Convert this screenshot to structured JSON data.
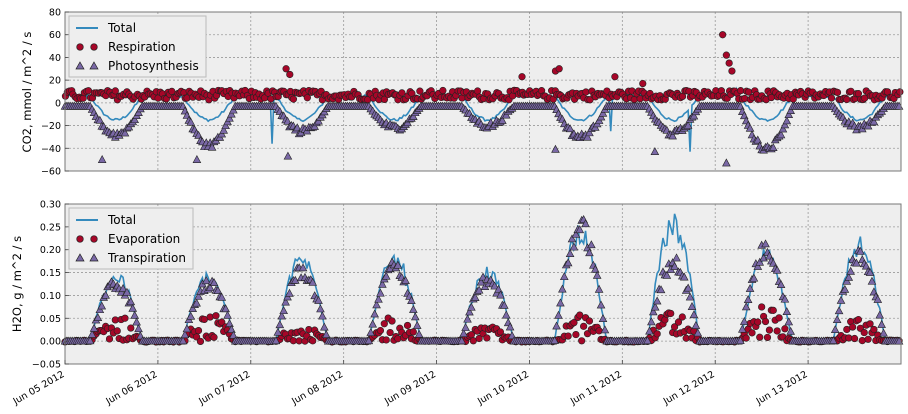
{
  "chart_data": [
    {
      "type": "line",
      "ylabel": "CO2, mmol / m^2 / s",
      "ylim": [
        -60,
        80
      ],
      "yticks": [
        -60,
        -40,
        -20,
        0,
        20,
        40,
        60,
        80
      ],
      "ytick_labels": [
        "−60",
        "−40",
        "−20",
        "0",
        "20",
        "40",
        "60",
        "80"
      ],
      "grid": true,
      "legend_position": "top-left",
      "series": [
        {
          "name": "Total",
          "style": "line",
          "color": "#348abd",
          "pattern": {
            "night": 6,
            "day": -15
          },
          "spikes": [
            {
              "x": 2.22,
              "y": -36
            },
            {
              "x": 5.88,
              "y": -25
            },
            {
              "x": 6.72,
              "y": -43
            },
            {
              "x": 7.22,
              "y": 12
            }
          ]
        },
        {
          "name": "Respiration",
          "style": "markers-circle",
          "color": "#a60628",
          "pattern": {
            "base": 6,
            "spread": 6
          },
          "outliers": [
            {
              "x": 2.38,
              "y": 30
            },
            {
              "x": 2.42,
              "y": 25
            },
            {
              "x": 5.28,
              "y": 28
            },
            {
              "x": 5.32,
              "y": 30
            },
            {
              "x": 4.92,
              "y": 23
            },
            {
              "x": 5.92,
              "y": 23
            },
            {
              "x": 6.22,
              "y": 17
            },
            {
              "x": 7.08,
              "y": 60
            },
            {
              "x": 7.12,
              "y": 42
            },
            {
              "x": 7.15,
              "y": 35
            },
            {
              "x": 7.18,
              "y": 28
            }
          ]
        },
        {
          "name": "Photosynthesis",
          "style": "markers-triangle",
          "color": "#7a68a6",
          "pattern": {
            "night": -3,
            "day": [
              -28,
              -37,
              -25,
              -22,
              -20,
              -30,
              -27,
              -40,
              -22
            ]
          },
          "outliers": [
            {
              "x": 0.4,
              "y": -50
            },
            {
              "x": 1.42,
              "y": -50
            },
            {
              "x": 2.4,
              "y": -47
            },
            {
              "x": 5.28,
              "y": -41
            },
            {
              "x": 6.35,
              "y": -43
            },
            {
              "x": 7.12,
              "y": -53
            }
          ]
        }
      ]
    },
    {
      "type": "line",
      "ylabel": "H2O, g / m^2 / s",
      "ylim": [
        -0.05,
        0.3
      ],
      "yticks": [
        -0.05,
        0.0,
        0.05,
        0.1,
        0.15,
        0.2,
        0.25,
        0.3
      ],
      "ytick_labels": [
        "−0.05",
        "0.00",
        "0.05",
        "0.10",
        "0.15",
        "0.20",
        "0.25",
        "0.30"
      ],
      "grid": true,
      "legend_position": "top-left",
      "x_range": [
        "2012-06-05",
        "2012-06-14"
      ],
      "xtick_labels": [
        "Jun 05 2012",
        "Jun 06 2012",
        "Jun 07 2012",
        "Jun 08 2012",
        "Jun 09 2012",
        "Jun 10 2012",
        "Jun 11 2012",
        "Jun 12 2012",
        "Jun 13 2012"
      ],
      "series": [
        {
          "name": "Total",
          "style": "line",
          "color": "#348abd",
          "daily_peak": [
            0.15,
            0.15,
            0.19,
            0.19,
            0.16,
            0.26,
            0.27,
            0.2,
            0.22
          ]
        },
        {
          "name": "Evaporation",
          "style": "markers-circle",
          "color": "#a60628",
          "daily_peak": [
            0.05,
            0.05,
            0.04,
            0.05,
            0.03,
            0.05,
            0.06,
            0.07,
            0.04
          ]
        },
        {
          "name": "Transpiration",
          "style": "markers-triangle",
          "color": "#7a68a6",
          "daily_peak": [
            0.13,
            0.13,
            0.16,
            0.17,
            0.14,
            0.26,
            0.18,
            0.21,
            0.2
          ]
        }
      ]
    }
  ],
  "colors": {
    "axes_background": "#eeeeee",
    "grid": "#9a9a9a",
    "total": "#348abd",
    "respiration": "#a60628",
    "photosynthesis": "#7a68a6"
  }
}
